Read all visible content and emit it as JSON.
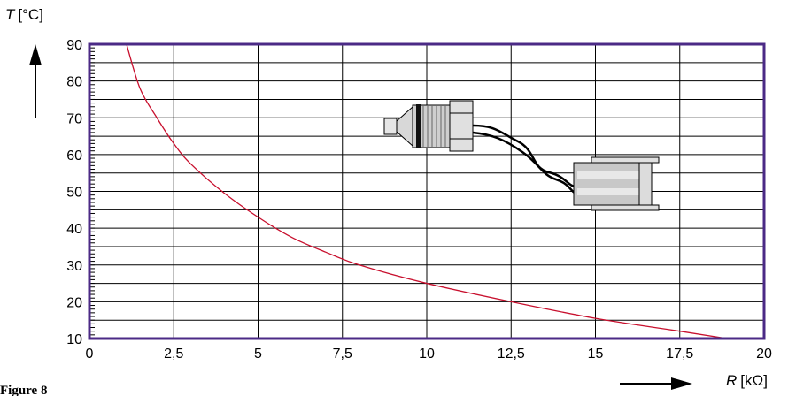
{
  "chart_data": {
    "type": "line",
    "ylabel_var": "T",
    "ylabel_unit": "[°C]",
    "xlabel_var": "R",
    "xlabel_unit": "[kΩ]",
    "caption": "Figure 8",
    "xlim": [
      0,
      20
    ],
    "ylim": [
      10,
      90
    ],
    "x_ticks": [
      "0",
      "2,5",
      "5",
      "7,5",
      "10",
      "12,5",
      "15",
      "17,5",
      "20"
    ],
    "y_ticks": [
      "10",
      "20",
      "30",
      "40",
      "50",
      "60",
      "70",
      "80",
      "90"
    ],
    "grid": true,
    "series": [
      {
        "x": [
          1.1,
          1.5,
          2.0,
          2.5,
          3.0,
          4.0,
          5.0,
          6.0,
          7.0,
          8.0,
          10.0,
          12.5,
          15.0,
          17.5,
          18.9
        ],
        "y": [
          90,
          78,
          70,
          63,
          57.5,
          49.5,
          43,
          37.5,
          33.5,
          30,
          25,
          20,
          15.5,
          12,
          10
        ]
      }
    ],
    "colors": {
      "frame": "#4b2a86",
      "curve": "#c8102e",
      "grid": "#000000"
    }
  },
  "icons": {
    "sensor": "temperature-sensor-illustration",
    "y_arrow": "arrow-up-icon",
    "x_arrow": "arrow-right-icon"
  }
}
